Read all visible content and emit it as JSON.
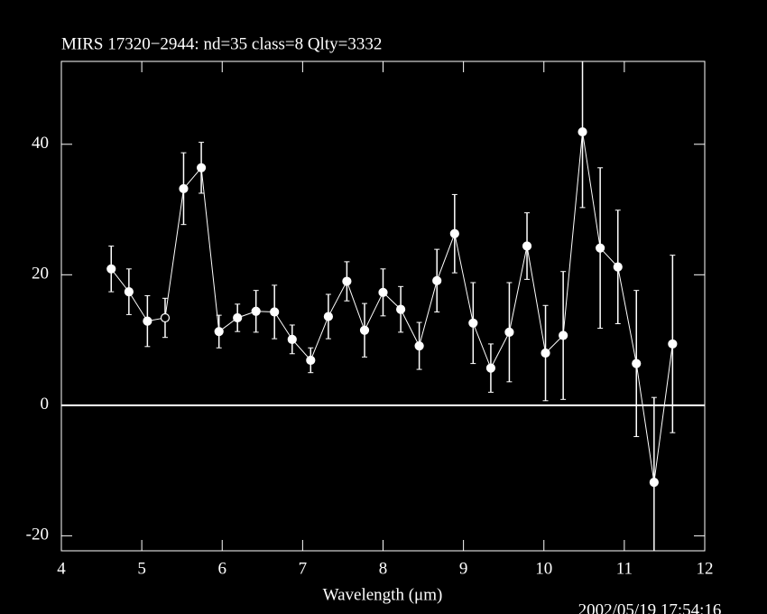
{
  "chart_data": {
    "type": "errorbar-line",
    "title": "MIRS 17320−2944:    nd=35    class=8    Qlty=3332",
    "xlabel": "Wavelength (μm)",
    "timestamp": "2002/05/19 17:54:16",
    "x": [
      4.62,
      4.84,
      5.07,
      5.29,
      5.52,
      5.74,
      5.96,
      6.19,
      6.42,
      6.65,
      6.87,
      7.1,
      7.32,
      7.55,
      7.77,
      8.0,
      8.22,
      8.45,
      8.67,
      8.89,
      9.12,
      9.34,
      9.57,
      9.79,
      10.02,
      10.24,
      10.48,
      10.7,
      10.92,
      11.15,
      11.37,
      11.6
    ],
    "values": [
      20.9,
      17.4,
      12.9,
      13.4,
      33.2,
      36.4,
      11.3,
      13.4,
      14.4,
      14.3,
      10.1,
      6.9,
      13.6,
      19.0,
      11.5,
      17.3,
      14.7,
      9.1,
      19.1,
      26.3,
      12.6,
      5.7,
      11.2,
      24.4,
      8.0,
      10.7,
      41.9,
      24.1,
      21.2,
      6.4,
      -11.8,
      9.4
    ],
    "errors": [
      3.5,
      3.5,
      3.9,
      3.0,
      5.5,
      3.9,
      2.5,
      2.1,
      3.2,
      4.1,
      2.2,
      1.9,
      3.4,
      3.0,
      4.1,
      3.6,
      3.5,
      3.6,
      4.8,
      6.0,
      6.2,
      3.7,
      7.6,
      5.1,
      7.3,
      9.8,
      11.6,
      12.3,
      8.7,
      11.2,
      13.0,
      13.6
    ],
    "markers": [
      "filled",
      "filled",
      "filled",
      "open",
      "filled",
      "filled",
      "filled",
      "filled",
      "filled",
      "filled",
      "filled",
      "filled",
      "filled",
      "filled",
      "filled",
      "filled",
      "filled",
      "filled",
      "filled",
      "filled",
      "filled",
      "filled",
      "filled",
      "filled",
      "filled",
      "filled",
      "filled",
      "filled",
      "filled",
      "filled",
      "filled",
      "filled"
    ],
    "color": "#ffffff",
    "hline": 0,
    "xlim": [
      4,
      12
    ],
    "ylim": [
      -22.3,
      52.7
    ],
    "xticks": [
      4,
      5,
      6,
      7,
      8,
      9,
      10,
      11,
      12
    ],
    "yticks": [
      -20,
      0,
      20,
      40
    ]
  }
}
